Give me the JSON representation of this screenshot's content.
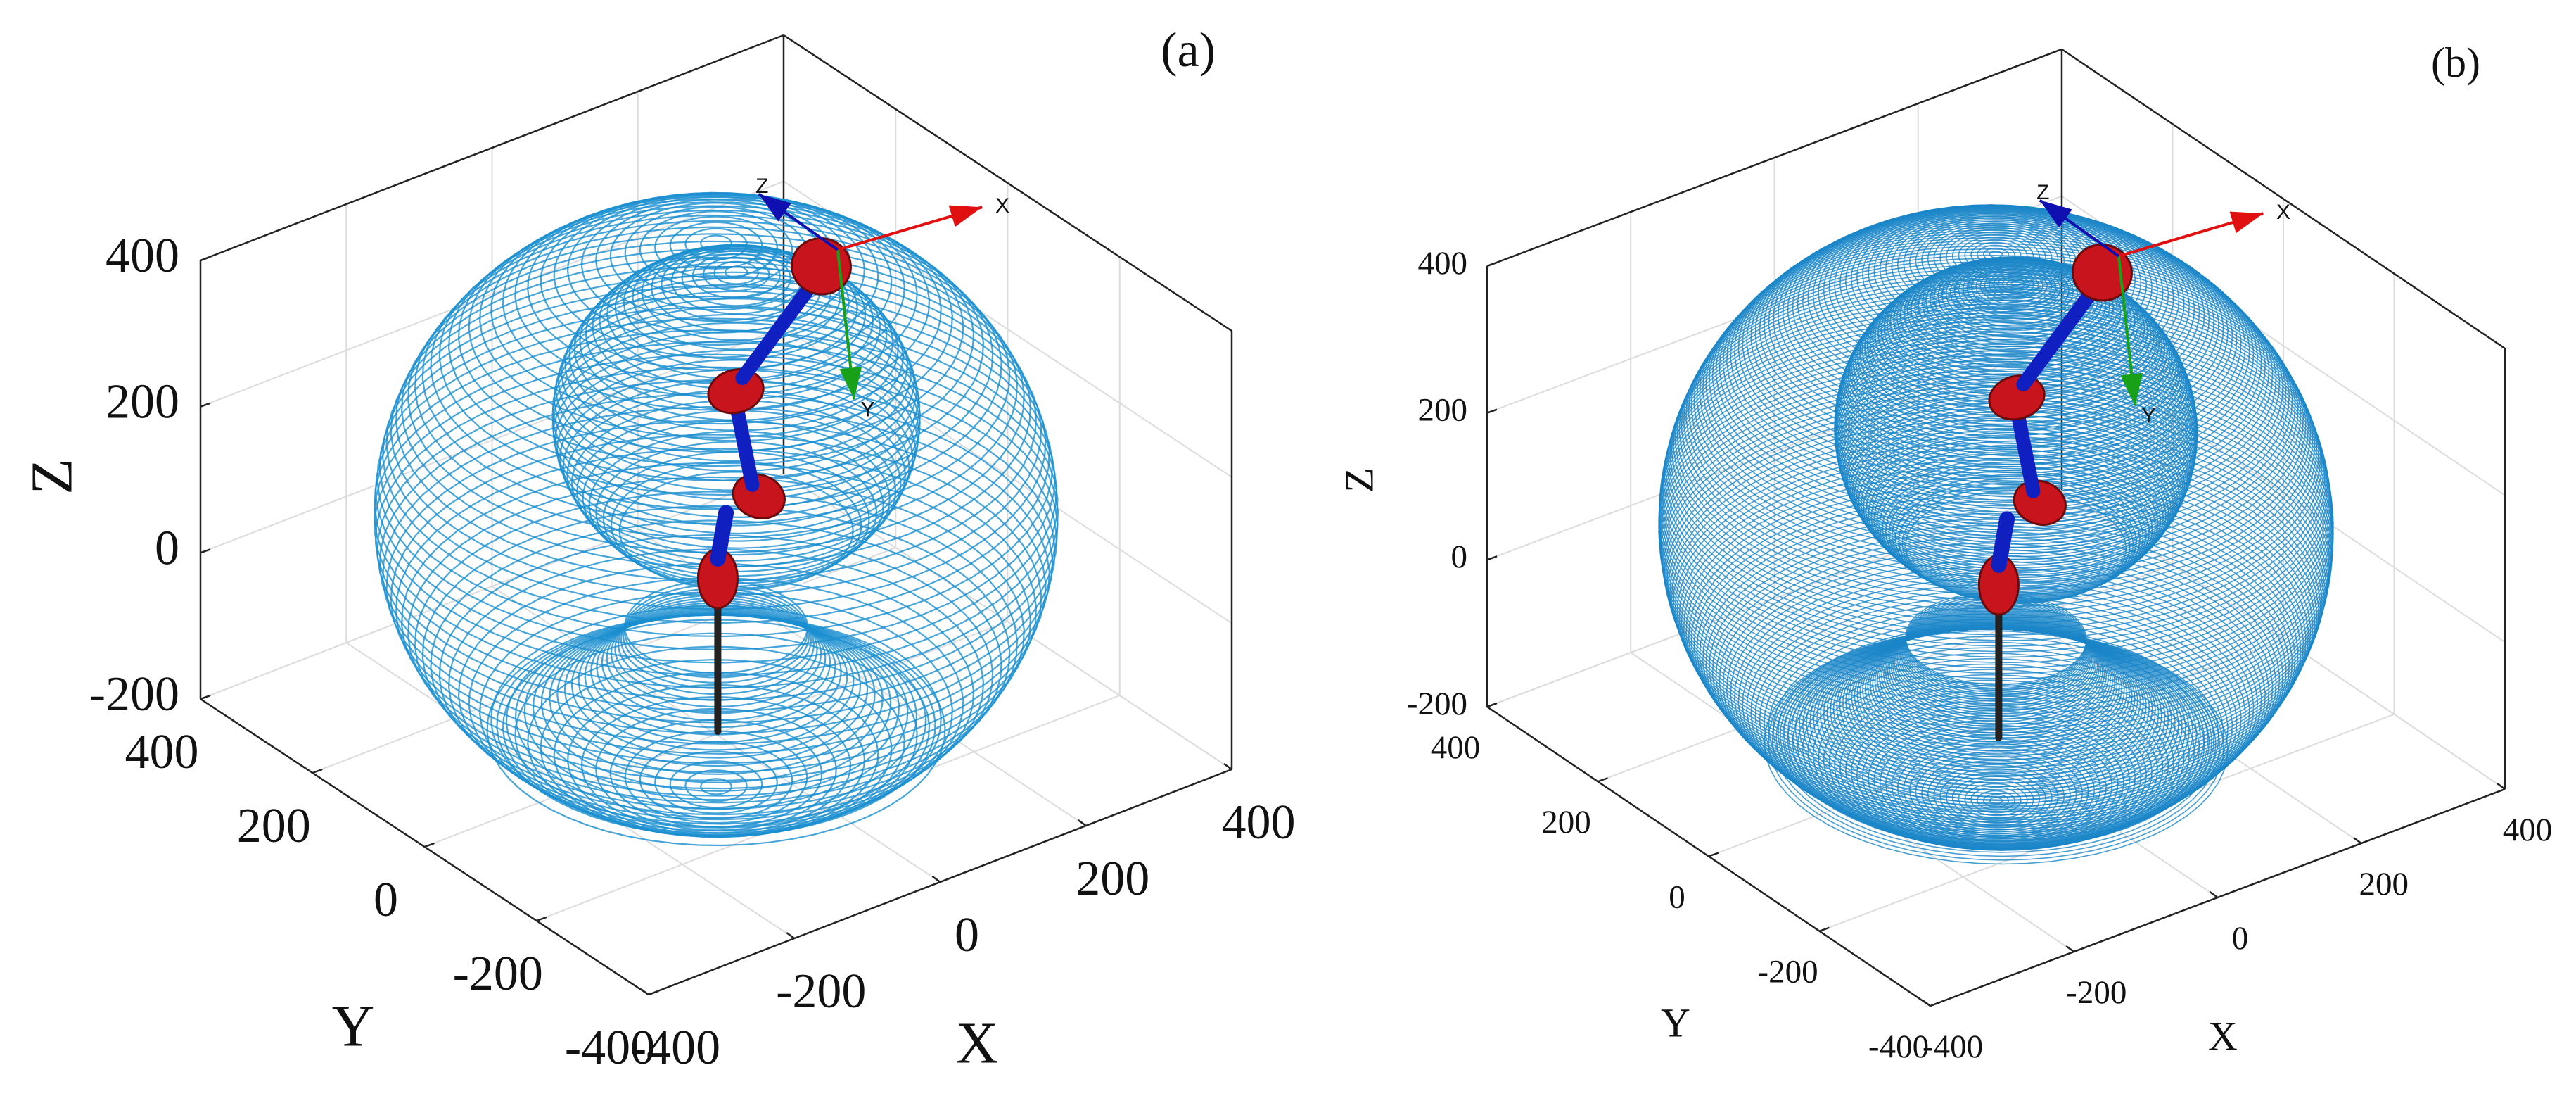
{
  "chart_data": [
    {
      "type": "surface3d",
      "panel_label": "(a)",
      "xlabel": "X",
      "ylabel": "Y",
      "zlabel": "Z",
      "xlim": [
        -400,
        400
      ],
      "ylim": [
        -400,
        400
      ],
      "zlim": [
        -200,
        400
      ],
      "xticks": [
        -400,
        -200,
        0,
        200,
        400
      ],
      "yticks": [
        -400,
        -200,
        0,
        200,
        400
      ],
      "zticks": [
        -200,
        0,
        200,
        400
      ],
      "color": "#1a8fcf",
      "grid": true,
      "frame_labels": [
        "X",
        "Y",
        "Z"
      ]
    },
    {
      "type": "surface3d",
      "panel_label": "(b)",
      "xlabel": "X",
      "ylabel": "Y",
      "zlabel": "Z",
      "xlim": [
        -400,
        400
      ],
      "ylim": [
        -400,
        400
      ],
      "zlim": [
        -200,
        400
      ],
      "xticks": [
        -400,
        -200,
        0,
        200,
        400
      ],
      "yticks": [
        -400,
        -200,
        0,
        200,
        400
      ],
      "zticks": [
        -200,
        0,
        200,
        400
      ],
      "color": "#1a86c8",
      "grid": true,
      "frame_labels": [
        "X",
        "Y",
        "Z"
      ]
    }
  ]
}
